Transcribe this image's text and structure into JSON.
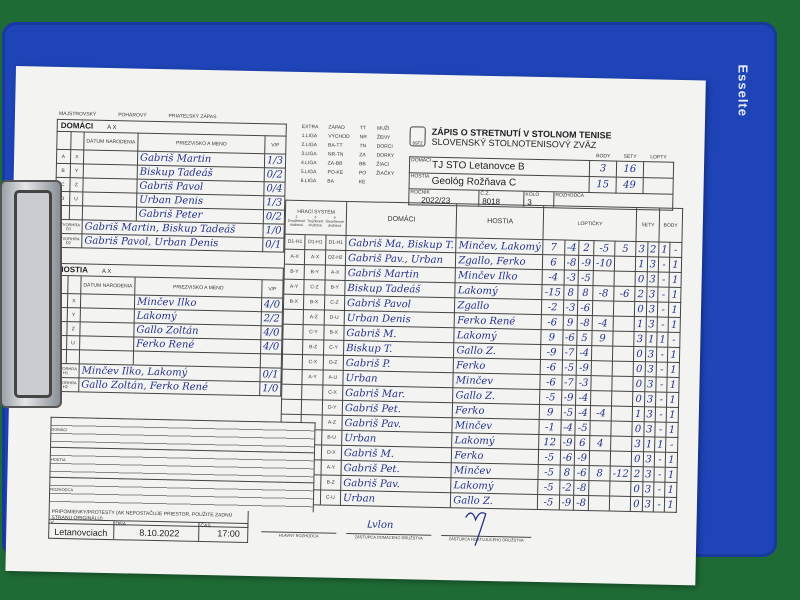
{
  "brand": "Esselte",
  "match_type": [
    "MAJSTROVSKÝ",
    "POHÁROVÝ",
    "PRIATEĽSKÝ ZÁPAS"
  ],
  "home_section": {
    "title": "DOMÁCI",
    "tag": "A  X",
    "col_birth": "DÁTUM NARODENIA",
    "col_name": "PRIEZVISKO A MENO",
    "col_vp": "V/P",
    "players": [
      {
        "l1": "A",
        "l2": "X",
        "name": "Gabriš Martin",
        "vp": "1/3"
      },
      {
        "l1": "B",
        "l2": "Y",
        "name": "Biskup Tadeáš",
        "vp": "0/2"
      },
      {
        "l1": "C",
        "l2": "Z",
        "name": "Gabriš Pavol",
        "vp": "0/4"
      },
      {
        "l1": "D",
        "l2": "U",
        "name": "Urban Denis",
        "vp": "1/3"
      },
      {
        "l1": "",
        "l2": "",
        "name": "Gabriš Peter",
        "vp": "0/2"
      }
    ],
    "doubles": [
      {
        "label": "ŠTVORHRA D1",
        "name": "Gabriš Martin, Biskup Tadeáš",
        "vp": "1/0"
      },
      {
        "label": "ŠTVORHRA D2",
        "name": "Gabriš Pavol, Urban Denis",
        "vp": "0/1"
      }
    ]
  },
  "guest_section": {
    "title": "HOSTIA",
    "tag": "A  X",
    "col_birth": "DÁTUM NARODENIA",
    "col_name": "PRIEZVISKO A MENO",
    "col_vp": "V/P",
    "players": [
      {
        "l1": "A",
        "l2": "X",
        "name": "Minčev Ilko",
        "vp": "4/0"
      },
      {
        "l1": "B",
        "l2": "Y",
        "name": "Lakomý",
        "vp": "2/2"
      },
      {
        "l1": "C",
        "l2": "Z",
        "name": "Gallo Zoltán",
        "vp": "4/0"
      },
      {
        "l1": "D",
        "l2": "U",
        "name": "Ferko René",
        "vp": "4/0"
      }
    ],
    "doubles": [
      {
        "label": "ŠTVORHRA H1",
        "name": "Minčev Ilko, Lakomý",
        "vp": "0/1"
      },
      {
        "label": "ŠTVORHRA H2",
        "name": "Gallo Zoltán, Ferko René",
        "vp": "1/0"
      }
    ]
  },
  "leagues": [
    [
      "EXTRA",
      "ZÁPAD",
      "TT",
      "MUŽI"
    ],
    [
      "1.LIGA",
      "VÝCHOD",
      "NR",
      "ŽENY"
    ],
    [
      "2.LIGA",
      "BA-TT",
      "TN",
      "DORCI"
    ],
    [
      "3.LIGA",
      "NR-TN",
      "ZA",
      "DORKY"
    ],
    [
      "4.LIGA",
      "ZA-BB",
      "BB",
      "ŽIACI"
    ],
    [
      "5.LIGA",
      "PO-KE",
      "PO",
      "ŽIAČKY"
    ],
    [
      "6.LIGA",
      "BA",
      "KE",
      ""
    ]
  ],
  "header": {
    "title": "ZÁPIS O STRETNUTÍ V STOLNOM TENISE",
    "federation": "SLOVENSKÝ STOLNOTENISOVÝ ZVÄZ",
    "logo_text": "SSTZ",
    "home_label": "DOMÁCI",
    "home_team": "TJ STO Letanovce B",
    "guest_label": "HOSTIA",
    "guest_team": "Geológ Rožňava C",
    "col_body": "BODY",
    "col_sety": "SETY",
    "col_lopty": "LOPTY",
    "home_body": "3",
    "home_sety": "16",
    "guest_body": "15",
    "guest_sety": "49",
    "season_label": "ROČNÍK",
    "season": "2022/23",
    "cz_label": "Č.Z.",
    "cz": "8018",
    "round_label": "KOLO",
    "round": "3",
    "referee_label": "ROZHODCA"
  },
  "matches_header": {
    "system": "HRACÍ SYSTÉM",
    "sys1": "2 Dvojčlenné družstvá",
    "sys2": "3 Trojčlenné družstvá",
    "sys3": "4 Štvorčlenné družstvá",
    "home": "DOMÁCI",
    "guest": "HOSTIA",
    "balls": "LOPTIČKY",
    "sets": "SETY",
    "points": "BODY"
  },
  "matches": [
    {
      "s1": "D1-H1",
      "s2": "D1-H1",
      "s3": "D1-H1",
      "home": "Gabriš Ma, Biskup T.",
      "guest": "Minčev, Lakomý",
      "balls": [
        "7",
        "-4",
        "2",
        "-5",
        "5"
      ],
      "sets": [
        "3",
        "2"
      ],
      "points": [
        "1",
        "-"
      ]
    },
    {
      "s1": "A-X",
      "s2": "A-X",
      "s3": "D2-H2",
      "home": "Gabriš Pav., Urban",
      "guest": "Zgallo, Ferko",
      "balls": [
        "6",
        "-8",
        "-9",
        "-10",
        ""
      ],
      "sets": [
        "1",
        "3"
      ],
      "points": [
        "-",
        "1"
      ]
    },
    {
      "s1": "B-Y",
      "s2": "B-Y",
      "s3": "A-X",
      "home": "Gabriš Martin",
      "guest": "Minčev Ilko",
      "balls": [
        "-4",
        "-3",
        "-5",
        "",
        ""
      ],
      "sets": [
        "0",
        "3"
      ],
      "points": [
        "-",
        "1"
      ]
    },
    {
      "s1": "A-Y",
      "s2": "C-Z",
      "s3": "B-Y",
      "home": "Biskup Tadeáš",
      "guest": "Lakomý",
      "balls": [
        "-15",
        "8",
        "8",
        "-8",
        "-6"
      ],
      "sets": [
        "2",
        "3"
      ],
      "points": [
        "-",
        "1"
      ]
    },
    {
      "s1": "B-X",
      "s2": "B-X",
      "s3": "C-Z",
      "home": "Gabriš Pavol",
      "guest": "Zgallo",
      "balls": [
        "-2",
        "-3",
        "-6",
        "",
        ""
      ],
      "sets": [
        "0",
        "3"
      ],
      "points": [
        "-",
        "1"
      ]
    },
    {
      "s1": "",
      "s2": "A-Z",
      "s3": "D-U",
      "home": "Urban Denis",
      "guest": "Ferko René",
      "balls": [
        "-6",
        "9",
        "-8",
        "-4",
        ""
      ],
      "sets": [
        "1",
        "3"
      ],
      "points": [
        "-",
        "1"
      ]
    },
    {
      "s1": "",
      "s2": "C-Y",
      "s3": "B-X",
      "home": "Gabriš M.",
      "guest": "Lakomý",
      "balls": [
        "9",
        "-6",
        "5",
        "9",
        ""
      ],
      "sets": [
        "3",
        "1"
      ],
      "points": [
        "1",
        "-"
      ]
    },
    {
      "s1": "",
      "s2": "B-Z",
      "s3": "C-Y",
      "home": "Biskup T.",
      "guest": "Gallo Z.",
      "balls": [
        "-9",
        "-7",
        "-4",
        "",
        ""
      ],
      "sets": [
        "0",
        "3"
      ],
      "points": [
        "-",
        "1"
      ]
    },
    {
      "s1": "",
      "s2": "C-X",
      "s3": "D-Z",
      "home": "Gabriš P.",
      "guest": "Ferko",
      "balls": [
        "-6",
        "-5",
        "-9",
        "",
        ""
      ],
      "sets": [
        "0",
        "3"
      ],
      "points": [
        "-",
        "1"
      ]
    },
    {
      "s1": "",
      "s2": "A-Y",
      "s3": "A-U",
      "home": "Urban",
      "guest": "Minčev",
      "balls": [
        "-6",
        "-7",
        "-3",
        "",
        ""
      ],
      "sets": [
        "0",
        "3"
      ],
      "points": [
        "-",
        "1"
      ]
    },
    {
      "s1": "",
      "s2": "",
      "s3": "C-X",
      "home": "Gabriš Mar.",
      "guest": "Gallo Z.",
      "balls": [
        "-5",
        "-9",
        "-4",
        "",
        ""
      ],
      "sets": [
        "0",
        "3"
      ],
      "points": [
        "-",
        "1"
      ]
    },
    {
      "s1": "",
      "s2": "",
      "s3": "D-Y",
      "home": "Gabriš Pet.",
      "guest": "Ferko",
      "balls": [
        "9",
        "-5",
        "-4",
        "-4",
        ""
      ],
      "sets": [
        "1",
        "3"
      ],
      "points": [
        "-",
        "1"
      ]
    },
    {
      "s1": "",
      "s2": "",
      "s3": "A-Z",
      "home": "Gabriš Pav.",
      "guest": "Minčev",
      "balls": [
        "-1",
        "-4",
        "-5",
        "",
        ""
      ],
      "sets": [
        "0",
        "3"
      ],
      "points": [
        "-",
        "1"
      ]
    },
    {
      "s1": "",
      "s2": "",
      "s3": "B-U",
      "home": "Urban",
      "guest": "Lakomý",
      "balls": [
        "12",
        "-9",
        "6",
        "4",
        ""
      ],
      "sets": [
        "3",
        "1"
      ],
      "points": [
        "1",
        "-"
      ]
    },
    {
      "s1": "",
      "s2": "",
      "s3": "D-X",
      "home": "Gabriš M.",
      "guest": "Ferko",
      "balls": [
        "-5",
        "-6",
        "-9",
        "",
        ""
      ],
      "sets": [
        "0",
        "3"
      ],
      "points": [
        "-",
        "1"
      ]
    },
    {
      "s1": "",
      "s2": "",
      "s3": "A-Y",
      "home": "Gabriš Pet.",
      "guest": "Minčev",
      "balls": [
        "-5",
        "8",
        "-6",
        "8",
        "-12"
      ],
      "sets": [
        "2",
        "3"
      ],
      "points": [
        "-",
        "1"
      ]
    },
    {
      "s1": "",
      "s2": "",
      "s3": "B-Z",
      "home": "Gabriš Pav.",
      "guest": "Lakomý",
      "balls": [
        "-5",
        "-2",
        "-8",
        "",
        ""
      ],
      "sets": [
        "0",
        "3"
      ],
      "points": [
        "-",
        "1"
      ]
    },
    {
      "s1": "",
      "s2": "",
      "s3": "C-U",
      "home": "Urban",
      "guest": "Gallo Z.",
      "balls": [
        "-5",
        "-9",
        "-8",
        "",
        ""
      ],
      "sets": [
        "0",
        "3"
      ],
      "points": [
        "-",
        "1"
      ]
    }
  ],
  "notes": {
    "home": "DOMÁCI",
    "guest": "HOSTIA",
    "referee": "ROZHODCA",
    "protests": "PRIPOMIENKY/PROTESTY (AK NEPOSTAČUJE PRIESTOR, POUŽITE ZADNÚ STRANU ORIGINÁLU)"
  },
  "footer": {
    "place_label": "V",
    "place": "Letanovciach",
    "date_label": "DŇA",
    "date": "8.10.2022",
    "time_label": "ČAS",
    "time": "17:00",
    "sig_referee": "HLAVNÝ ROZHODCA",
    "sig_home": "ZÁSTUPCA DOMÁCEHO DRUŽSTVA",
    "sig_guest": "ZÁSTUPCA HOSTUJÚCEHO DRUŽSTVA"
  },
  "colors": {
    "background": "#1f6b35",
    "clipboard": "#1e44b8",
    "ink": "#23308a",
    "paper": "#f3f4f2"
  }
}
